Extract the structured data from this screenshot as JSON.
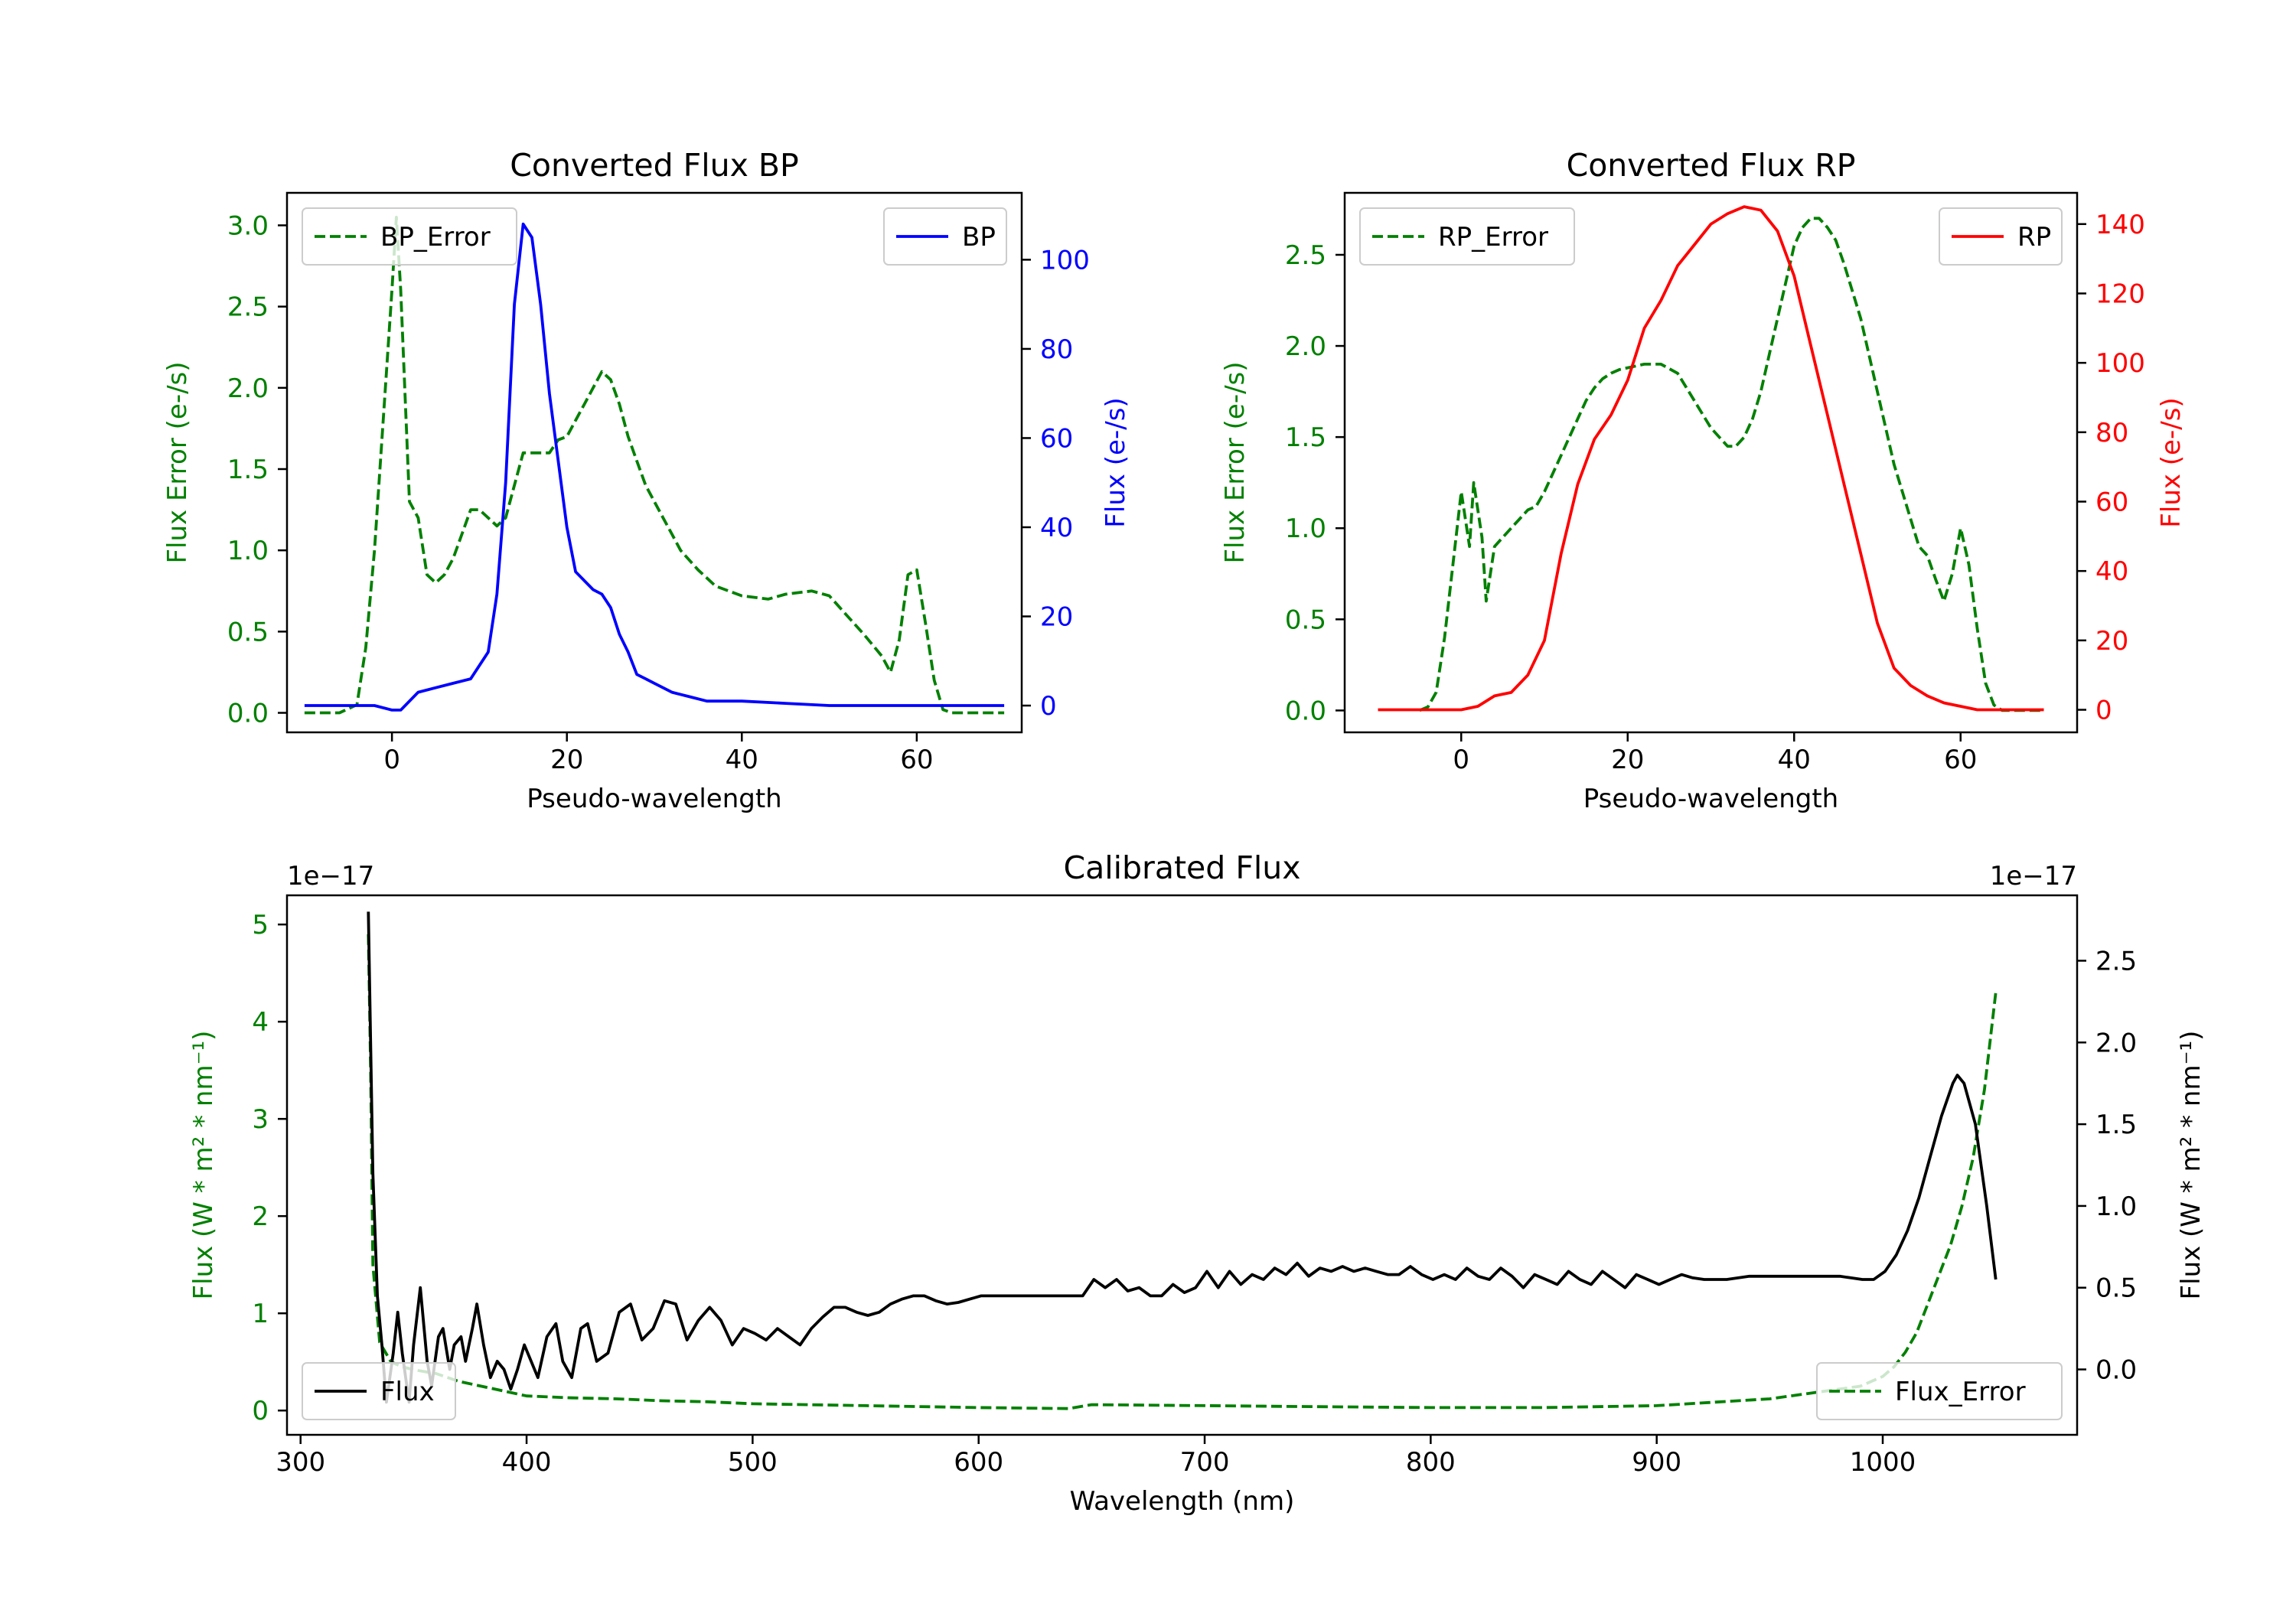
{
  "chart_data": [
    {
      "type": "line",
      "title": "Converted Flux BP",
      "xlabel": "Pseudo-wavelength",
      "ylabel_left": "Flux Error (e-/s)",
      "ylabel_right": "Flux (e-/s)",
      "xlim": [
        -12,
        72
      ],
      "ylim_left": [
        -0.12,
        3.2
      ],
      "ylim_right": [
        -6,
        115
      ],
      "x_ticks": [
        0,
        20,
        40,
        60
      ],
      "y_ticks_left": [
        0.0,
        0.5,
        1.0,
        1.5,
        2.0,
        2.5,
        3.0
      ],
      "y_ticks_left_labels": [
        "0.0",
        "0.5",
        "1.0",
        "1.5",
        "2.0",
        "2.5",
        "3.0"
      ],
      "y_ticks_right": [
        0,
        20,
        40,
        60,
        80,
        100
      ],
      "y_ticks_right_labels": [
        "0",
        "20",
        "40",
        "60",
        "80",
        "100"
      ],
      "colors": {
        "left": "#008000",
        "right": "#0000ff"
      },
      "legend_left": {
        "label": "BP_Error",
        "position": "upper-left"
      },
      "legend_right": {
        "label": "BP",
        "position": "upper-right"
      },
      "series": [
        {
          "name": "BP_Error",
          "axis": "left",
          "style": "dashed",
          "color": "#008000",
          "x": [
            -10,
            -6,
            -4,
            -3,
            -2,
            -1,
            0,
            0.5,
            1,
            2,
            3,
            4,
            5,
            6,
            7,
            8,
            9,
            10,
            11,
            12,
            13,
            14,
            15,
            16,
            17,
            18,
            19,
            20,
            21,
            22,
            23,
            24,
            25,
            26,
            27,
            28,
            29,
            30,
            31,
            32,
            33,
            35,
            37,
            40,
            43,
            45,
            48,
            50,
            52,
            54,
            56,
            57,
            58,
            59,
            60,
            61,
            62,
            63,
            64,
            65,
            70
          ],
          "y": [
            0,
            0,
            0.05,
            0.4,
            1.0,
            1.8,
            2.6,
            3.05,
            2.6,
            1.3,
            1.2,
            0.85,
            0.8,
            0.85,
            0.95,
            1.1,
            1.25,
            1.25,
            1.2,
            1.15,
            1.2,
            1.4,
            1.6,
            1.6,
            1.6,
            1.6,
            1.68,
            1.7,
            1.8,
            1.9,
            2.0,
            2.1,
            2.05,
            1.9,
            1.7,
            1.55,
            1.4,
            1.3,
            1.2,
            1.1,
            1.0,
            0.88,
            0.78,
            0.72,
            0.7,
            0.73,
            0.75,
            0.72,
            0.6,
            0.48,
            0.35,
            0.25,
            0.45,
            0.85,
            0.88,
            0.55,
            0.2,
            0.02,
            0,
            0,
            0
          ]
        },
        {
          "name": "BP",
          "axis": "right",
          "style": "solid",
          "color": "#0000ff",
          "x": [
            -10,
            -5,
            -2,
            0,
            1,
            3,
            5,
            7,
            9,
            11,
            12,
            13,
            14,
            15,
            16,
            17,
            18,
            19,
            20,
            21,
            22,
            23,
            24,
            25,
            26,
            27,
            28,
            29,
            30,
            32,
            34,
            36,
            38,
            40,
            45,
            50,
            55,
            60,
            65,
            70
          ],
          "y": [
            0,
            0,
            0,
            -1,
            -1,
            3,
            4,
            5,
            6,
            12,
            25,
            50,
            90,
            108,
            105,
            90,
            70,
            55,
            40,
            30,
            28,
            26,
            25,
            22,
            16,
            12,
            7,
            6,
            5,
            3,
            2,
            1,
            1,
            1,
            0.5,
            0,
            0,
            0,
            0,
            0
          ]
        }
      ]
    },
    {
      "type": "line",
      "title": "Converted Flux RP",
      "xlabel": "Pseudo-wavelength",
      "ylabel_left": "Flux Error (e-/s)",
      "ylabel_right": "Flux (e-/s)",
      "xlim": [
        -14,
        74
      ],
      "ylim_left": [
        -0.12,
        2.84
      ],
      "ylim_right": [
        -6.5,
        149
      ],
      "x_ticks": [
        0,
        20,
        40,
        60
      ],
      "y_ticks_left": [
        0.0,
        0.5,
        1.0,
        1.5,
        2.0,
        2.5
      ],
      "y_ticks_left_labels": [
        "0.0",
        "0.5",
        "1.0",
        "1.5",
        "2.0",
        "2.5"
      ],
      "y_ticks_right": [
        0,
        20,
        40,
        60,
        80,
        100,
        120,
        140
      ],
      "y_ticks_right_labels": [
        "0",
        "20",
        "40",
        "60",
        "80",
        "100",
        "120",
        "140"
      ],
      "colors": {
        "left": "#008000",
        "right": "#ff0000"
      },
      "legend_left": {
        "label": "RP_Error",
        "position": "upper-left"
      },
      "legend_right": {
        "label": "RP",
        "position": "upper-right"
      },
      "series": [
        {
          "name": "RP_Error",
          "axis": "left",
          "style": "dashed",
          "color": "#008000",
          "x": [
            -5,
            -4,
            -3,
            -2,
            -1,
            0,
            1,
            1.5,
            2.5,
            3,
            4,
            5,
            6,
            7,
            8,
            9,
            10,
            11,
            12,
            13,
            14,
            15,
            16,
            17,
            18,
            19,
            20,
            22,
            24,
            26,
            28,
            30,
            32,
            33,
            34,
            35,
            36,
            37,
            38,
            39,
            40,
            41,
            42,
            43,
            44,
            45,
            46,
            48,
            50,
            52,
            54,
            55,
            56,
            57,
            58,
            59,
            60,
            61,
            62,
            63,
            64,
            65,
            70
          ],
          "y": [
            0,
            0.02,
            0.1,
            0.4,
            0.8,
            1.2,
            0.9,
            1.25,
            0.95,
            0.6,
            0.9,
            0.95,
            1.0,
            1.05,
            1.1,
            1.12,
            1.2,
            1.3,
            1.4,
            1.5,
            1.6,
            1.7,
            1.77,
            1.82,
            1.85,
            1.87,
            1.88,
            1.9,
            1.9,
            1.85,
            1.7,
            1.55,
            1.45,
            1.45,
            1.5,
            1.6,
            1.75,
            1.95,
            2.15,
            2.35,
            2.55,
            2.65,
            2.7,
            2.7,
            2.65,
            2.58,
            2.45,
            2.15,
            1.75,
            1.35,
            1.05,
            0.9,
            0.85,
            0.72,
            0.6,
            0.75,
            1.0,
            0.8,
            0.45,
            0.15,
            0.03,
            0,
            0
          ]
        },
        {
          "name": "RP",
          "axis": "right",
          "style": "solid",
          "color": "#ff0000",
          "x": [
            -10,
            -5,
            0,
            2,
            4,
            6,
            8,
            10,
            12,
            14,
            16,
            18,
            20,
            22,
            24,
            26,
            28,
            30,
            32,
            34,
            36,
            38,
            40,
            42,
            44,
            46,
            48,
            50,
            52,
            54,
            56,
            58,
            60,
            62,
            65,
            70
          ],
          "y": [
            0,
            0,
            0,
            1,
            4,
            5,
            10,
            20,
            45,
            65,
            78,
            85,
            95,
            110,
            118,
            128,
            134,
            140,
            143,
            145,
            144,
            138,
            125,
            105,
            85,
            65,
            45,
            25,
            12,
            7,
            4,
            2,
            1,
            0,
            0,
            0
          ]
        }
      ]
    },
    {
      "type": "line",
      "title": "Calibrated Flux",
      "xlabel": "Wavelength (nm)",
      "ylabel_left": "Flux (W * m² * nm⁻¹)",
      "ylabel_right": "Flux (W * m² * nm⁻¹)",
      "offset_left": "1e−17",
      "offset_right": "1e−17",
      "xlim": [
        294,
        1086
      ],
      "ylim_left": [
        -0.25,
        5.3
      ],
      "ylim_right": [
        -0.4,
        2.9
      ],
      "x_ticks": [
        300,
        400,
        500,
        600,
        700,
        800,
        900,
        1000
      ],
      "y_ticks_left": [
        0,
        1,
        2,
        3,
        4,
        5
      ],
      "y_ticks_left_labels": [
        "0",
        "1",
        "2",
        "3",
        "4",
        "5"
      ],
      "y_ticks_right": [
        0.0,
        0.5,
        1.0,
        1.5,
        2.0,
        2.5
      ],
      "y_ticks_right_labels": [
        "0.0",
        "0.5",
        "1.0",
        "1.5",
        "2.0",
        "2.5"
      ],
      "colors": {
        "left": "#008000",
        "right": "#000000"
      },
      "legend_left": {
        "label": "Flux",
        "position": "lower-left"
      },
      "legend_right": {
        "label": "Flux_Error",
        "position": "lower-right"
      },
      "series": [
        {
          "name": "Flux_Error",
          "axis": "left",
          "style": "dashed",
          "color": "#008000",
          "x": [
            330,
            331,
            332,
            335,
            340,
            345,
            350,
            360,
            370,
            380,
            390,
            400,
            420,
            440,
            460,
            480,
            500,
            550,
            600,
            640,
            650,
            700,
            750,
            800,
            850,
            900,
            950,
            990,
            1000,
            1005,
            1010,
            1015,
            1020,
            1025,
            1030,
            1035,
            1040,
            1045,
            1050
          ],
          "y": [
            4.9,
            3.5,
            1.5,
            0.7,
            0.5,
            0.45,
            0.42,
            0.38,
            0.3,
            0.25,
            0.2,
            0.15,
            0.13,
            0.12,
            0.1,
            0.09,
            0.07,
            0.05,
            0.03,
            0.02,
            0.06,
            0.05,
            0.04,
            0.03,
            0.03,
            0.05,
            0.12,
            0.25,
            0.35,
            0.45,
            0.6,
            0.8,
            1.1,
            1.4,
            1.7,
            2.1,
            2.6,
            3.3,
            4.3
          ]
        },
        {
          "name": "Flux",
          "axis": "right",
          "style": "solid",
          "color": "#000000",
          "x": [
            330,
            332,
            334,
            336,
            338,
            341,
            343,
            345,
            348,
            350,
            353,
            356,
            358,
            361,
            363,
            366,
            368,
            371,
            373,
            376,
            378,
            381,
            384,
            387,
            390,
            393,
            396,
            399,
            402,
            405,
            409,
            413,
            416,
            420,
            424,
            427,
            431,
            436,
            441,
            446,
            451,
            456,
            461,
            466,
            471,
            476,
            481,
            486,
            491,
            496,
            501,
            506,
            511,
            516,
            521,
            526,
            531,
            536,
            541,
            546,
            551,
            556,
            561,
            566,
            571,
            576,
            581,
            586,
            591,
            596,
            601,
            606,
            611,
            616,
            621,
            626,
            631,
            636,
            641,
            646,
            651,
            656,
            661,
            666,
            671,
            676,
            681,
            686,
            691,
            696,
            701,
            706,
            711,
            716,
            721,
            726,
            731,
            736,
            741,
            746,
            751,
            756,
            761,
            766,
            771,
            776,
            781,
            786,
            791,
            796,
            801,
            806,
            811,
            816,
            821,
            826,
            831,
            836,
            841,
            846,
            851,
            856,
            861,
            866,
            871,
            876,
            881,
            886,
            891,
            896,
            901,
            906,
            911,
            916,
            921,
            926,
            931,
            936,
            941,
            946,
            951,
            956,
            961,
            966,
            971,
            976,
            981,
            986,
            991,
            996,
            1001,
            1006,
            1011,
            1016,
            1021,
            1026,
            1031,
            1033,
            1036,
            1041,
            1046,
            1050
          ],
          "y": [
            2.8,
            1.2,
            0.45,
            0.15,
            -0.2,
            0.1,
            0.35,
            0.1,
            -0.2,
            0.15,
            0.5,
            0.05,
            -0.1,
            0.2,
            0.25,
            0.0,
            0.15,
            0.2,
            0.05,
            0.25,
            0.4,
            0.15,
            -0.05,
            0.05,
            0.0,
            -0.12,
            0.0,
            0.15,
            0.05,
            -0.05,
            0.2,
            0.28,
            0.05,
            -0.05,
            0.25,
            0.28,
            0.05,
            0.1,
            0.35,
            0.4,
            0.18,
            0.25,
            0.42,
            0.4,
            0.18,
            0.3,
            0.38,
            0.3,
            0.15,
            0.25,
            0.22,
            0.18,
            0.25,
            0.2,
            0.15,
            0.25,
            0.32,
            0.38,
            0.38,
            0.35,
            0.33,
            0.35,
            0.4,
            0.43,
            0.45,
            0.45,
            0.42,
            0.4,
            0.41,
            0.43,
            0.45,
            0.45,
            0.45,
            0.45,
            0.45,
            0.45,
            0.45,
            0.45,
            0.45,
            0.45,
            0.55,
            0.5,
            0.55,
            0.48,
            0.5,
            0.45,
            0.45,
            0.52,
            0.47,
            0.5,
            0.6,
            0.5,
            0.6,
            0.52,
            0.58,
            0.55,
            0.62,
            0.58,
            0.65,
            0.57,
            0.62,
            0.6,
            0.63,
            0.6,
            0.62,
            0.6,
            0.58,
            0.58,
            0.63,
            0.58,
            0.55,
            0.58,
            0.55,
            0.62,
            0.57,
            0.55,
            0.62,
            0.57,
            0.5,
            0.58,
            0.55,
            0.52,
            0.6,
            0.55,
            0.52,
            0.6,
            0.55,
            0.5,
            0.58,
            0.55,
            0.52,
            0.55,
            0.58,
            0.56,
            0.55,
            0.55,
            0.55,
            0.56,
            0.57,
            0.57,
            0.57,
            0.57,
            0.57,
            0.57,
            0.57,
            0.57,
            0.57,
            0.56,
            0.55,
            0.55,
            0.6,
            0.7,
            0.85,
            1.05,
            1.3,
            1.55,
            1.75,
            1.8,
            1.75,
            1.5,
            1.0,
            0.55
          ]
        }
      ]
    }
  ]
}
